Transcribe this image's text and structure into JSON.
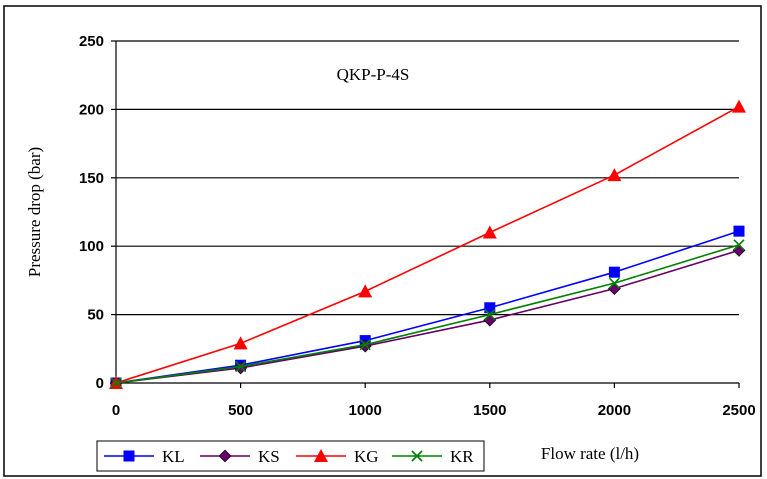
{
  "chart_data": {
    "type": "line",
    "annotation": "QKP-P-4S",
    "xlabel": "Flow rate (l/h)",
    "ylabel": "Pressure drop (bar)",
    "x": [
      0,
      500,
      1000,
      1500,
      2000,
      2500
    ],
    "xlim": [
      0,
      2500
    ],
    "ylim": [
      0,
      250
    ],
    "x_ticks": [
      0,
      500,
      1000,
      1500,
      2000,
      2500
    ],
    "y_ticks": [
      0,
      50,
      100,
      150,
      200,
      250
    ],
    "grid": "horizontal",
    "legend_position": "bottom",
    "series": [
      {
        "name": "KL",
        "color": "#0000ff",
        "marker": "square",
        "values": [
          0,
          13,
          31,
          55,
          81,
          111
        ]
      },
      {
        "name": "KS",
        "color": "#660066",
        "marker": "diamond",
        "values": [
          0,
          11,
          27,
          46,
          69,
          97
        ]
      },
      {
        "name": "KG",
        "color": "#ff0000",
        "marker": "triangle",
        "values": [
          0,
          29,
          67,
          110,
          152,
          202
        ]
      },
      {
        "name": "KR",
        "color": "#008000",
        "marker": "cross",
        "values": [
          0,
          12,
          28,
          50,
          73,
          101
        ]
      }
    ]
  }
}
